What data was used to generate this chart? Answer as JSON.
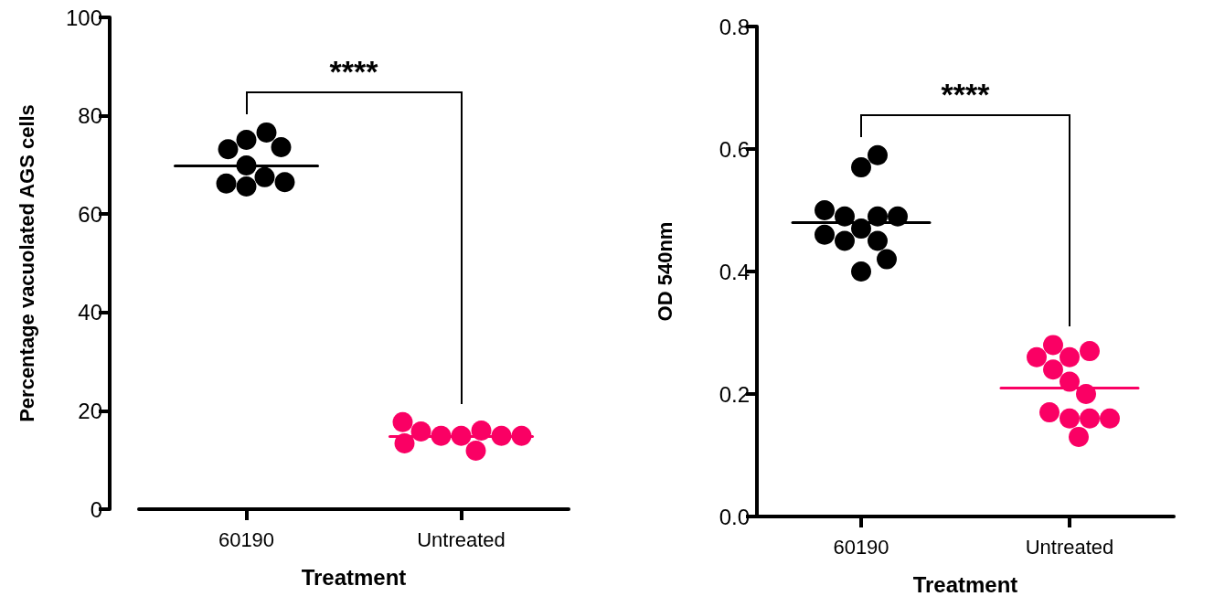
{
  "chart_data": [
    {
      "type": "scatter",
      "xlabel": "Treatment",
      "ylabel": "Percentage vacuolated AGS cells",
      "categories": [
        "60190",
        "Untreated"
      ],
      "ylim": [
        0,
        100
      ],
      "yticks": [
        0,
        20,
        40,
        60,
        80,
        100
      ],
      "grid": false,
      "marker": "circle",
      "annotations": [
        "****"
      ],
      "series": [
        {
          "color": "#000000",
          "x": [
            "60190",
            "60190",
            "60190",
            "60190",
            "60190",
            "60190",
            "60190",
            "60190",
            "60190"
          ],
          "values": [
            75.1,
            69.9,
            65.6,
            76.6,
            67.5,
            73.2,
            66.2,
            73.6,
            66.5
          ]
        },
        {
          "color": "#fa0064",
          "x": [
            "Untreated",
            "Untreated",
            "Untreated",
            "Untreated",
            "Untreated",
            "Untreated",
            "Untreated",
            "Untreated",
            "Untreated"
          ],
          "values": [
            14.9,
            16,
            14.9,
            14.9,
            15.8,
            11.9,
            14.9,
            17.7,
            13.4
          ]
        }
      ],
      "ref_lines": [
        {
          "axis": "y",
          "value": 69.9,
          "color": "#000000"
        },
        {
          "axis": "y",
          "value": 14.9,
          "color": "#fa0064"
        }
      ]
    },
    {
      "type": "scatter",
      "xlabel": "Treatment",
      "ylabel": "OD 540nm",
      "categories": [
        "60190",
        "Untreated"
      ],
      "ylim": [
        0,
        0.8
      ],
      "yticks": [
        {
          "value": 0,
          "label": "0.0"
        },
        0.2,
        0.4,
        0.6,
        0.8
      ],
      "grid": false,
      "marker": "circle",
      "annotations": [
        "****"
      ],
      "series": [
        {
          "color": "#000000",
          "x": [
            "60190",
            "60190",
            "60190",
            "60190",
            "60190",
            "60190",
            "60190",
            "60190",
            "60190",
            "60190",
            "60190",
            "60190"
          ],
          "values": [
            0.47,
            0.49,
            0.45,
            0.4,
            0.57,
            0.49,
            0.45,
            0.59,
            0.49,
            0.46,
            0.42,
            0.5
          ]
        },
        {
          "color": "#fa0064",
          "x": [
            "Untreated",
            "Untreated",
            "Untreated",
            "Untreated",
            "Untreated",
            "Untreated",
            "Untreated",
            "Untreated",
            "Untreated",
            "Untreated",
            "Untreated",
            "Untreated"
          ],
          "values": [
            0.26,
            0.27,
            0.28,
            0.26,
            0.22,
            0.24,
            0.2,
            0.16,
            0.17,
            0.16,
            0.16,
            0.13
          ]
        }
      ],
      "ref_lines": [
        {
          "axis": "y",
          "value": 0.48,
          "color": "#000000"
        },
        {
          "axis": "y",
          "value": 0.21,
          "color": "#fa0064"
        }
      ]
    }
  ]
}
